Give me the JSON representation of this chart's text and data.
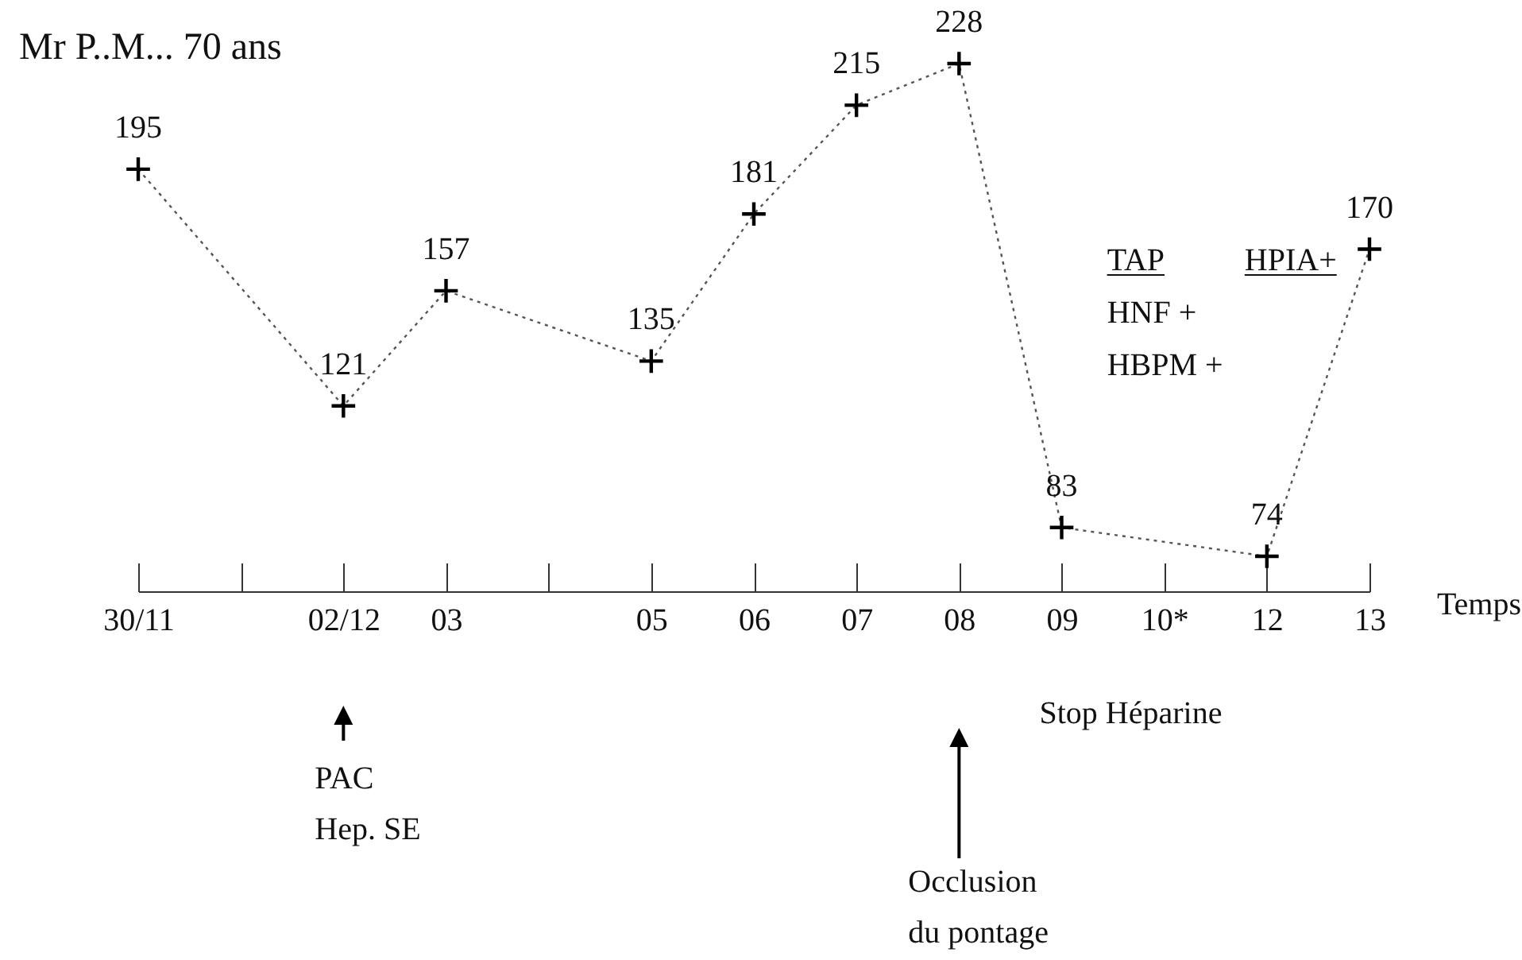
{
  "chart_data": {
    "type": "line",
    "title": "Mr P..M... 70 ans",
    "xlabel": "Temps",
    "categories": [
      "30/11",
      null,
      "02/12",
      "03",
      null,
      "05",
      "06",
      "07",
      "08",
      "09",
      "10*",
      "12",
      "13"
    ],
    "values": [
      195,
      null,
      121,
      157,
      null,
      135,
      181,
      215,
      228,
      83,
      null,
      74,
      170
    ],
    "color": "#555555",
    "marker": "cross",
    "line_style": "dotted",
    "data_labels": true,
    "annotations": [
      "TAP",
      "HNF +",
      "HBPM +",
      "HPIA+",
      "PAC",
      "Hep. SE",
      "Stop Héparine",
      "Occlusion",
      "du pontage"
    ]
  }
}
